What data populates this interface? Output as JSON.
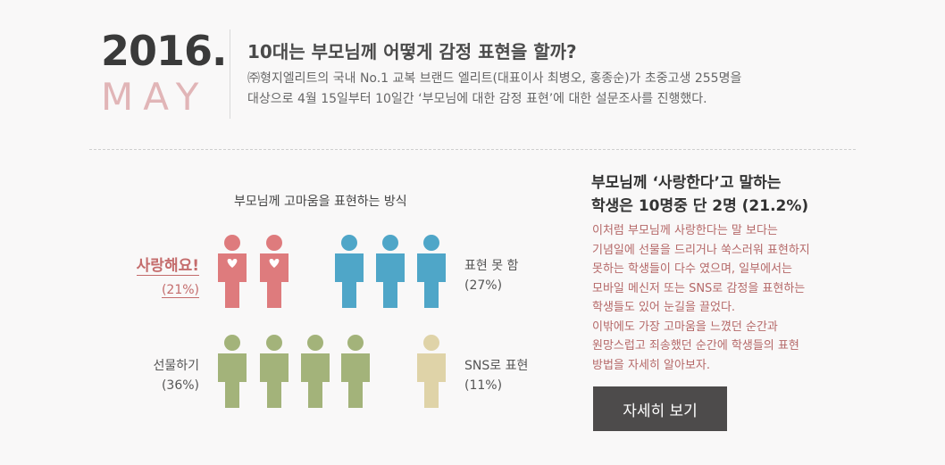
{
  "header": {
    "year": "2016.",
    "month": "MAY",
    "title": "10대는 부모님께 어떻게 감정 표현을 할까?",
    "desc_line1": "㈜형지엘리트의 국내 No.1 교복 브랜드 엘리트(대표이사 최병오, 홍종순)가 초중고생 255명을",
    "desc_line2": "대상으로 4월 15일부터 10일간 ‘부모님에 대한 감정 표현’에 대한 설문조사를 진행했다."
  },
  "chart_data": {
    "type": "pictogram",
    "title": "부모님께 고마움을 표현하는 방식",
    "categories": [
      "사랑해요!",
      "표현 못 함",
      "선물하기",
      "SNS로 표현"
    ],
    "values": [
      21,
      27,
      36,
      11
    ],
    "percent_labels": [
      "(21%)",
      "(27%)",
      "(36%)",
      "(11%)"
    ],
    "icon_counts": [
      2,
      3,
      4,
      1
    ],
    "colors": [
      "#de7b7d",
      "#4fa6c8",
      "#a3b37a",
      "#dfd3a8"
    ]
  },
  "side": {
    "heading_line1": "부모님께 ‘사랑한다’고 말하는",
    "heading_line2": "학생은 10명중 단 2명 (21.2%)",
    "body_lines": [
      "이처럼 부모님께 사랑한다는 말 보다는",
      "기념일에 선물을 드리거나 쑥스러워 표현하지",
      "못하는 학생들이 다수 였으며, 일부에서는",
      "모바일 메신저 또는 SNS로 감정을 표현하는",
      "학생들도 있어 눈길을 끌었다.",
      "이밖에도 가장 고마움을 느꼈던 순간과",
      "원망스럽고 죄송했던 순간에 학생들의 표현",
      "방법을 자세히 알아보자."
    ],
    "button_label": "자세히 보기"
  }
}
